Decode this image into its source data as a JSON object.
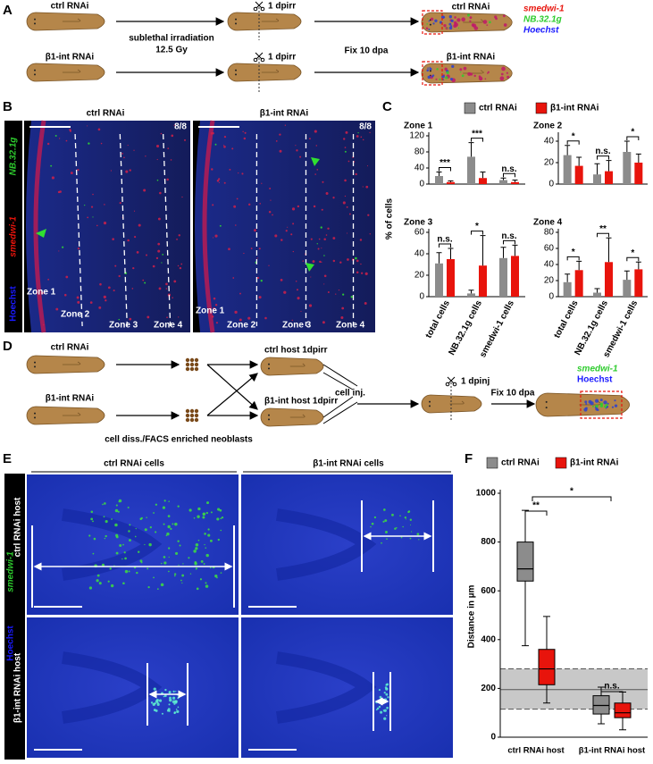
{
  "figure": {
    "panel_labels": [
      "A",
      "B",
      "C",
      "D",
      "E",
      "F"
    ],
    "a": {
      "rnai": [
        "ctrl RNAi",
        "β1-int RNAi"
      ],
      "treatment": [
        "sublethal irradiation",
        "12.5 Gy"
      ],
      "timepoint": "1 dpirr",
      "fixation": "Fix 10 dpa",
      "stains": [
        "smedwi-1",
        "NB.32.1g",
        "Hoechst"
      ]
    },
    "b": {
      "conditions": [
        "ctrl RNAi",
        "β1-int RNAi"
      ],
      "counts": [
        "8/8",
        "8/8"
      ],
      "channels": [
        "NB.32.1g",
        "smedwi-1",
        "Hoechst"
      ],
      "zones": [
        "Zone 1",
        "Zone 2",
        "Zone 3",
        "Zone 4"
      ]
    },
    "d": {
      "rnai": [
        "ctrl RNAi",
        "β1-int RNAi"
      ],
      "hosts": [
        "ctrl host 1dpirr",
        "β1-int host 1dpirr"
      ],
      "dissociation": "cell diss./FACS enriched neoblasts",
      "injection": "cell inj.",
      "timepoint": "1 dpinj",
      "fixation": "Fix 10 dpa",
      "stains": [
        "smedwi-1",
        "Hoechst"
      ]
    },
    "e": {
      "donors": [
        "ctrl RNAi cells",
        "β1-int RNAi cells"
      ],
      "hosts": [
        "ctrl RNAi host",
        "β1-int RNAi host"
      ],
      "channels": [
        "smedwi-1",
        "Hoechst"
      ]
    }
  },
  "chart_data": [
    {
      "type": "bar",
      "ylabel": "% of cells",
      "categories": [
        "total cells",
        "NB.32.1g cells",
        "smedwi-1 cells"
      ],
      "series": [
        {
          "name": "ctrl RNAi",
          "color": "#8c8c8c"
        },
        {
          "name": "β1-int RNAi",
          "color": "#e8140c"
        }
      ],
      "panels": [
        {
          "title": "Zone 1",
          "ylim": [
            0,
            120
          ],
          "yticks": [
            0,
            40,
            80,
            120
          ],
          "values": [
            [
              20,
              68,
              10
            ],
            [
              5,
              15,
              5
            ]
          ],
          "errors": [
            [
              10,
              35,
              5
            ],
            [
              3,
              15,
              5
            ]
          ],
          "significance": [
            "***",
            "***",
            "n.s."
          ]
        },
        {
          "title": "Zone 2",
          "ylim": [
            0,
            45
          ],
          "yticks": [
            0,
            20,
            40
          ],
          "values": [
            [
              27,
              9,
              30
            ],
            [
              17,
              12,
              20
            ]
          ],
          "errors": [
            [
              9,
              10,
              10
            ],
            [
              8,
              10,
              8
            ]
          ],
          "significance": [
            "*",
            "n.s.",
            "*"
          ]
        },
        {
          "title": "Zone 3",
          "ylim": [
            0,
            60
          ],
          "yticks": [
            0,
            20,
            40,
            60
          ],
          "values": [
            [
              31,
              3,
              36
            ],
            [
              35,
              29,
              38
            ]
          ],
          "errors": [
            [
              10,
              3,
              10
            ],
            [
              10,
              28,
              10
            ]
          ],
          "significance": [
            "n.s.",
            "*",
            "n.s."
          ]
        },
        {
          "title": "Zone 4",
          "ylim": [
            0,
            80
          ],
          "yticks": [
            0,
            20,
            40,
            60,
            80
          ],
          "values": [
            [
              18,
              5,
              21
            ],
            [
              33,
              43,
              34
            ]
          ],
          "errors": [
            [
              10,
              5,
              11
            ],
            [
              11,
              30,
              9
            ]
          ],
          "significance": [
            "*",
            "**",
            "*"
          ]
        }
      ]
    },
    {
      "type": "box",
      "ylabel": "Distance in µm",
      "categories": [
        "ctrl RNAi host",
        "β1-int RNAi host"
      ],
      "ylim": [
        0,
        1000
      ],
      "yticks": [
        0,
        200,
        400,
        600,
        800,
        1000
      ],
      "series": [
        {
          "name": "ctrl RNAi",
          "color": "#8c8c8c",
          "boxes": [
            {
              "min": 375,
              "q1": 640,
              "median": 690,
              "q3": 800,
              "max": 930
            },
            {
              "min": 55,
              "q1": 95,
              "median": 130,
              "q3": 170,
              "max": 205
            }
          ]
        },
        {
          "name": "β1-int RNAi",
          "color": "#e8140c",
          "boxes": [
            {
              "min": 140,
              "q1": 215,
              "median": 280,
              "q3": 360,
              "max": 495
            },
            {
              "min": 30,
              "q1": 80,
              "median": 100,
              "q3": 140,
              "max": 185
            }
          ]
        }
      ],
      "reference_band": {
        "low": 115,
        "mean": 195,
        "high": 280
      },
      "significance": [
        "**",
        "*",
        "n.s."
      ]
    }
  ]
}
